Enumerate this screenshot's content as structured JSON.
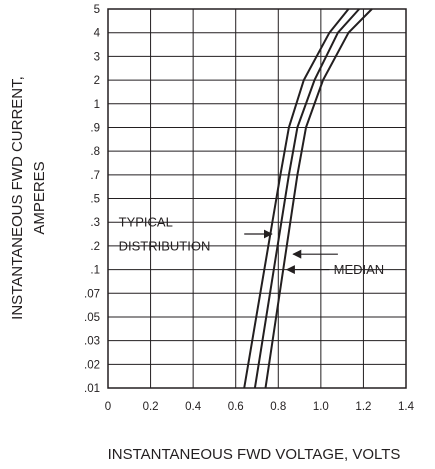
{
  "chart_data": {
    "type": "line",
    "title": "",
    "xlabel": "INSTANTANEOUS FWD VOLTAGE, VOLTS",
    "ylabel_lines": [
      "INSTANTANEOUS FWD CURRENT,",
      "AMPERES"
    ],
    "xlim": [
      0,
      1.4
    ],
    "x_ticks": [
      0,
      0.2,
      0.4,
      0.6,
      0.8,
      1.0,
      1.2,
      1.4
    ],
    "x_tick_labels": [
      "0",
      "0.2",
      "0.4",
      "0.6",
      "0.8",
      "1.0",
      "1.2",
      "1.4"
    ],
    "y_ticks": [
      0.01,
      0.02,
      0.03,
      0.05,
      0.07,
      0.1,
      0.2,
      0.3,
      0.5,
      0.7,
      0.8,
      0.9,
      1,
      2,
      3,
      4,
      5
    ],
    "y_tick_labels": [
      ".01",
      ".02",
      ".03",
      ".05",
      ".07",
      ".1",
      ".2",
      ".3",
      ".5",
      ".7",
      ".8",
      ".9",
      "1",
      "2",
      "3",
      "4",
      "5"
    ],
    "grid": true,
    "series": [
      {
        "x": [
          0.64,
          0.81,
          0.85,
          0.92,
          1.04,
          1.13
        ],
        "y": [
          0.01,
          0.7,
          0.9,
          2.0,
          4.0,
          5.0
        ]
      },
      {
        "x": [
          0.69,
          0.85,
          0.89,
          0.97,
          1.08,
          1.18
        ],
        "y": [
          0.01,
          0.7,
          0.9,
          2.0,
          4.0,
          5.0
        ]
      },
      {
        "x": [
          0.74,
          0.89,
          0.93,
          1.01,
          1.13,
          1.24
        ],
        "y": [
          0.01,
          0.7,
          0.9,
          2.0,
          4.0,
          5.0
        ]
      }
    ],
    "annotations": [
      {
        "text": "TYPICAL",
        "x": 0.05,
        "y": 0.3
      },
      {
        "text": "DISTRIBUTION",
        "x": 0.05,
        "y": 0.2
      },
      {
        "text": "MEDIAN",
        "x": 1.06,
        "y": 0.1
      }
    ],
    "arrows": [
      {
        "from": [
          0.64,
          0.25
        ],
        "to": [
          0.77,
          0.25
        ]
      },
      {
        "from": [
          1.08,
          0.165
        ],
        "to": [
          0.87,
          0.165
        ]
      },
      {
        "from": [
          1.04,
          0.1
        ],
        "to": [
          0.84,
          0.1
        ]
      }
    ]
  }
}
